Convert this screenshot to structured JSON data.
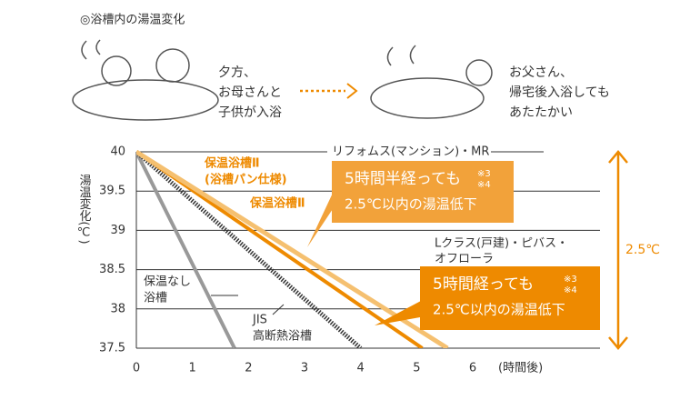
{
  "chart_data": {
    "type": "line",
    "title": "◎浴槽内の湯温変化",
    "captions": [
      [
        "夕方、",
        "お母さんと",
        "子供が入浴"
      ],
      [
        "お父さん、",
        "帰宅後入浴しても",
        "あたたかい"
      ]
    ],
    "y_label": "湯温変化(℃)",
    "x_label": "(時間後)",
    "xlim": [
      0,
      6
    ],
    "xticks": [
      0,
      1,
      2,
      3,
      4,
      5,
      6
    ],
    "ylim": [
      37.5,
      40
    ],
    "yticks": [
      {
        "value": 40,
        "label": "40"
      },
      39.5,
      39,
      38.5,
      38,
      37.5
    ],
    "grid": true,
    "series": [
      {
        "label": [
          "保温なし",
          "浴槽"
        ],
        "color": "#999999",
        "style": "solid",
        "x": [
          0,
          1.75
        ],
        "values": [
          40,
          37.5
        ]
      },
      {
        "label": [
          "JIS",
          "高断熱浴槽"
        ],
        "color": "#333333",
        "style": "dotted",
        "x": [
          0,
          4
        ],
        "values": [
          40,
          37.5
        ]
      },
      {
        "label": [
          "保温浴槽Ⅱ"
        ],
        "color": "#ee8a00",
        "style": "solid",
        "x": [
          0,
          5.1
        ],
        "values": [
          40,
          37.5
        ]
      },
      {
        "label": [
          "保温浴槽Ⅱ",
          "(浴槽パン仕様)"
        ],
        "color": "#f5c070",
        "style": "solid",
        "x": [
          0,
          5.55
        ],
        "values": [
          40,
          37.5
        ]
      }
    ],
    "product_labels": [
      [
        "リフォムス(マンション)・MR"
      ],
      [
        "Lクラス(戸建)・ピバス・",
        "オフローラ"
      ]
    ],
    "callouts": [
      {
        "lines": [
          "5時間半経っても",
          "2.5℃以内の湯温低下"
        ],
        "notes": [
          "※3",
          "※4"
        ],
        "color": "#f2a23a"
      },
      {
        "lines": [
          "5時間経っても",
          "2.5℃以内の湯温低下"
        ],
        "notes": [
          "※3",
          "※4"
        ],
        "color": "#ee8a00"
      }
    ],
    "range_label": "2.5℃",
    "range_color": "#ee8a00"
  }
}
